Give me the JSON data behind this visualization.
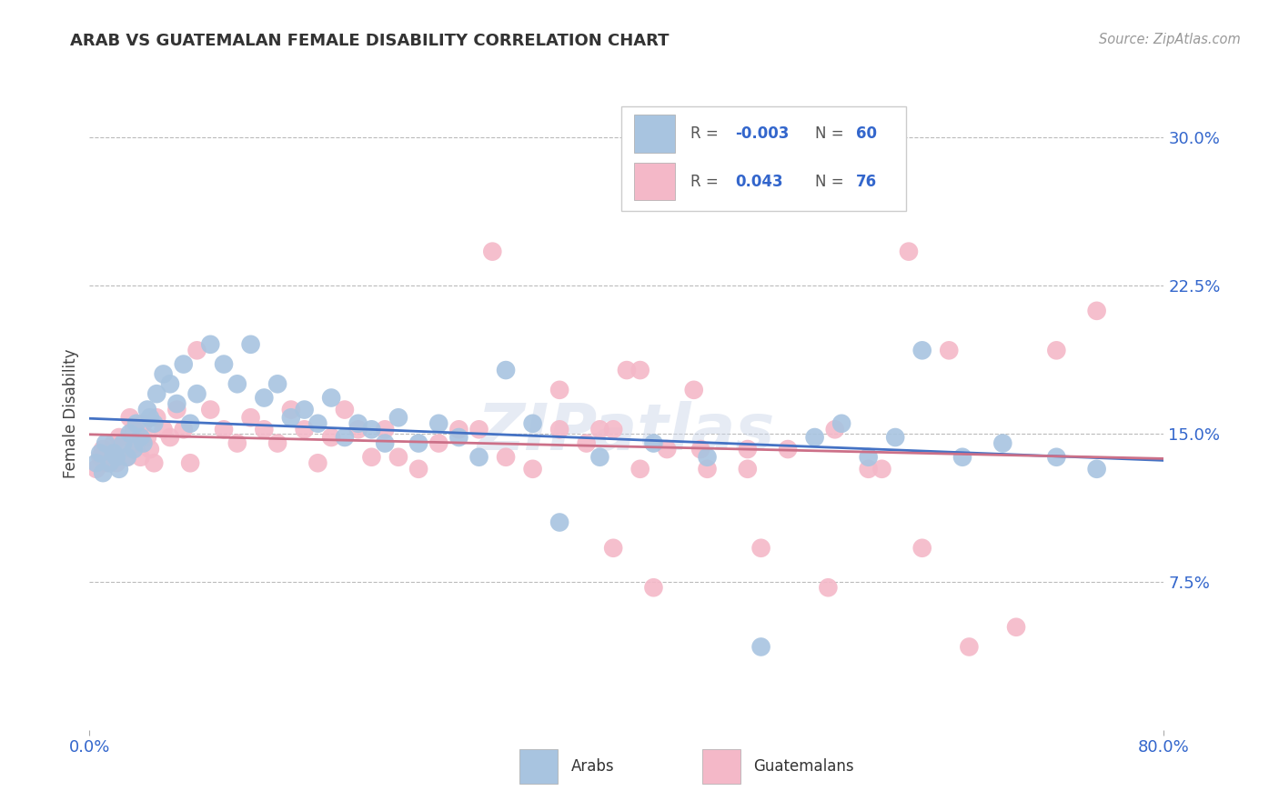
{
  "title": "ARAB VS GUATEMALAN FEMALE DISABILITY CORRELATION CHART",
  "source": "Source: ZipAtlas.com",
  "ylabel": "Female Disability",
  "ytick_labels": [
    "7.5%",
    "15.0%",
    "22.5%",
    "30.0%"
  ],
  "ytick_values": [
    0.075,
    0.15,
    0.225,
    0.3
  ],
  "xlim": [
    0.0,
    0.8
  ],
  "ylim": [
    0.0,
    0.32
  ],
  "arab_color": "#a8c4e0",
  "guatemalan_color": "#f4b8c8",
  "arab_line_color": "#4472c4",
  "guatemalan_line_color": "#cc7088",
  "arab_R": -0.003,
  "arab_N": 60,
  "guatemalan_R": 0.043,
  "guatemalan_N": 76,
  "label_color": "#3366cc",
  "background_color": "#ffffff",
  "grid_color": "#bbbbbb",
  "title_color": "#333333",
  "source_color": "#999999",
  "arab_x": [
    0.005,
    0.008,
    0.01,
    0.012,
    0.015,
    0.018,
    0.02,
    0.022,
    0.025,
    0.028,
    0.03,
    0.033,
    0.035,
    0.038,
    0.04,
    0.043,
    0.045,
    0.048,
    0.05,
    0.055,
    0.06,
    0.065,
    0.07,
    0.075,
    0.08,
    0.09,
    0.1,
    0.11,
    0.12,
    0.13,
    0.14,
    0.15,
    0.16,
    0.17,
    0.18,
    0.19,
    0.2,
    0.21,
    0.22,
    0.23,
    0.245,
    0.26,
    0.275,
    0.29,
    0.31,
    0.33,
    0.35,
    0.38,
    0.42,
    0.46,
    0.5,
    0.54,
    0.56,
    0.58,
    0.6,
    0.62,
    0.65,
    0.68,
    0.72,
    0.75
  ],
  "arab_y": [
    0.135,
    0.14,
    0.13,
    0.145,
    0.135,
    0.14,
    0.138,
    0.132,
    0.145,
    0.138,
    0.15,
    0.142,
    0.155,
    0.148,
    0.145,
    0.162,
    0.158,
    0.155,
    0.17,
    0.18,
    0.175,
    0.165,
    0.185,
    0.155,
    0.17,
    0.195,
    0.185,
    0.175,
    0.195,
    0.168,
    0.175,
    0.158,
    0.162,
    0.155,
    0.168,
    0.148,
    0.155,
    0.152,
    0.145,
    0.158,
    0.145,
    0.155,
    0.148,
    0.138,
    0.182,
    0.155,
    0.105,
    0.138,
    0.145,
    0.138,
    0.042,
    0.148,
    0.155,
    0.138,
    0.148,
    0.192,
    0.138,
    0.145,
    0.138,
    0.132
  ],
  "guatemalan_x": [
    0.005,
    0.008,
    0.01,
    0.012,
    0.015,
    0.018,
    0.02,
    0.022,
    0.025,
    0.028,
    0.03,
    0.033,
    0.035,
    0.038,
    0.04,
    0.043,
    0.045,
    0.048,
    0.05,
    0.055,
    0.06,
    0.065,
    0.07,
    0.075,
    0.08,
    0.09,
    0.1,
    0.11,
    0.12,
    0.13,
    0.14,
    0.15,
    0.16,
    0.17,
    0.18,
    0.19,
    0.2,
    0.21,
    0.22,
    0.23,
    0.245,
    0.26,
    0.275,
    0.29,
    0.31,
    0.33,
    0.35,
    0.37,
    0.39,
    0.41,
    0.43,
    0.46,
    0.49,
    0.39,
    0.42,
    0.455,
    0.49,
    0.52,
    0.555,
    0.59,
    0.62,
    0.655,
    0.69,
    0.72,
    0.75,
    0.38,
    0.41,
    0.3,
    0.35,
    0.4,
    0.45,
    0.5,
    0.55,
    0.58,
    0.61,
    0.64
  ],
  "guatemalan_y": [
    0.132,
    0.138,
    0.142,
    0.135,
    0.14,
    0.145,
    0.135,
    0.148,
    0.142,
    0.138,
    0.158,
    0.152,
    0.145,
    0.138,
    0.155,
    0.148,
    0.142,
    0.135,
    0.158,
    0.152,
    0.148,
    0.162,
    0.152,
    0.135,
    0.192,
    0.162,
    0.152,
    0.145,
    0.158,
    0.152,
    0.145,
    0.162,
    0.152,
    0.135,
    0.148,
    0.162,
    0.152,
    0.138,
    0.152,
    0.138,
    0.132,
    0.145,
    0.152,
    0.152,
    0.138,
    0.132,
    0.152,
    0.145,
    0.152,
    0.132,
    0.142,
    0.132,
    0.142,
    0.092,
    0.072,
    0.142,
    0.132,
    0.142,
    0.152,
    0.132,
    0.092,
    0.042,
    0.052,
    0.192,
    0.212,
    0.152,
    0.182,
    0.242,
    0.172,
    0.182,
    0.172,
    0.092,
    0.072,
    0.132,
    0.242,
    0.192
  ]
}
